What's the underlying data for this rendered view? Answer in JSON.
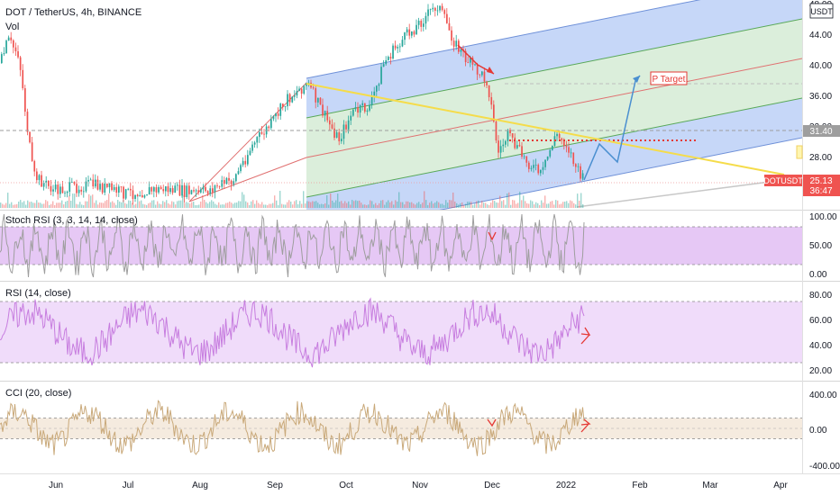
{
  "header": {
    "symbol_title": "DOT / TetherUS, 4h, BINANCE",
    "volume_label": "Vol"
  },
  "price_axis": {
    "currency": "USDT",
    "tick_labels": [
      "48.00",
      "44.00",
      "40.00",
      "36.00",
      "32.00",
      "28.00"
    ],
    "ticks": [
      48,
      44,
      40,
      36,
      32,
      28
    ],
    "markers": {
      "level_label": "31.40",
      "level": 31.4,
      "ticker_badge": "DOTUSDT",
      "last_price_label": "25.13",
      "last_price": 25.13,
      "countdown": "36:47"
    }
  },
  "annotations": {
    "target_label": "P Target",
    "target_price": 38.2
  },
  "time_axis": {
    "labels": [
      "Jun",
      "Jul",
      "Aug",
      "Sep",
      "Oct",
      "Nov",
      "Dec",
      "2022",
      "Feb",
      "Mar",
      "Apr"
    ]
  },
  "indicators": {
    "stoch_rsi": {
      "title": "Stoch RSI (3, 3, 14, 14, close)",
      "tick_labels": [
        "100.00",
        "50.00",
        "0.00"
      ],
      "band": [
        20,
        80
      ]
    },
    "rsi": {
      "title": "RSI (14, close)",
      "tick_labels": [
        "80.00",
        "60.00",
        "40.00",
        "20.00"
      ],
      "band": [
        30,
        70
      ]
    },
    "cci": {
      "title": "CCI (20, close)",
      "tick_labels": [
        "400.00",
        "0.00",
        "-400.00"
      ],
      "band": [
        -100,
        100
      ]
    }
  },
  "colors": {
    "up_candle": "#26a69a",
    "down_candle": "#ef5350",
    "fork_blue": "#b3c9f5",
    "fork_green": "#cfe8cf",
    "fork_red_line": "#e07070",
    "trend_yellow": "#f5dc4a",
    "projection_blue": "#4a8fd0",
    "stoch_fill": "#e6c8f5",
    "rsi_fill": "#f0dcfa",
    "cci_fill": "#f5ebdf",
    "rsi_line": "#c77ddf",
    "cci_line": "#c9a97a"
  },
  "chart_data": [
    {
      "type": "candlestick",
      "title": "DOT / TetherUS, 4h, BINANCE",
      "ylabel": "USDT",
      "ylim": [
        22,
        48.5
      ],
      "x_range": [
        "May 2021",
        "Apr 2022"
      ],
      "ohlc_anchor_closes": [
        {
          "x": "May",
          "y": 42
        },
        {
          "x": "Jun",
          "y": 22
        },
        {
          "x": "Jul",
          "y": 15
        },
        {
          "x": "Aug",
          "y": 26
        },
        {
          "x": "Sep",
          "y": 34
        },
        {
          "x": "Oct",
          "y": 33
        },
        {
          "x": "Nov",
          "y": 47
        },
        {
          "x": "Dec",
          "y": 28
        },
        {
          "x": "2022",
          "y": 30
        },
        {
          "x": "Jan 10",
          "y": 25.13
        }
      ],
      "last_price": 25.13,
      "horizontal_level": 31.4,
      "target_label": "P Target"
    },
    {
      "type": "line",
      "title": "Stoch RSI (3, 3, 14, 14, close)",
      "ylim": [
        0,
        100
      ],
      "band": [
        20,
        80
      ]
    },
    {
      "type": "line",
      "title": "RSI (14, close)",
      "ylim": [
        20,
        80
      ],
      "band": [
        30,
        70
      ]
    },
    {
      "type": "line",
      "title": "CCI (20, close)",
      "ylim": [
        -400,
        400
      ],
      "band": [
        -100,
        100
      ]
    }
  ]
}
